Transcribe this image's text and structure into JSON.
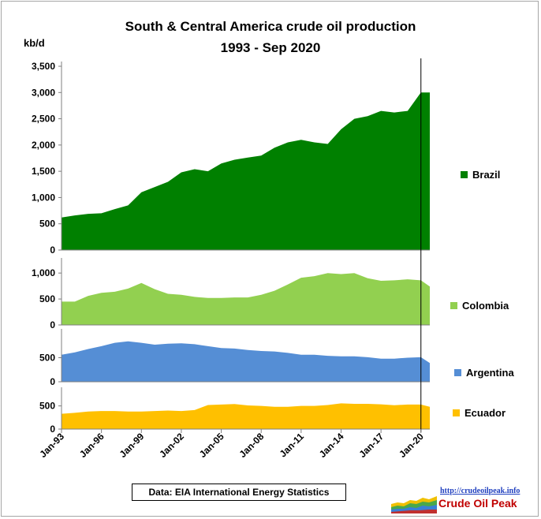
{
  "chart_data": {
    "type": "area",
    "title": "South & Central America crude oil production",
    "subtitle": "1993 - Sep 2020",
    "ylabel": "kb/d",
    "x": [
      "Jan-93",
      "Jan-96",
      "Jan-99",
      "Jan-02",
      "Jan-05",
      "Jan-08",
      "Jan-11",
      "Jan-14",
      "Jan-17",
      "Jan-20"
    ],
    "x_end": "Sep-20",
    "marker": "Jan-20",
    "source": "Data: EIA International Energy Statistics",
    "series": [
      {
        "name": "Brazil",
        "color": "#008000",
        "ylim": [
          0,
          3500
        ],
        "yticks": [
          "0",
          "500",
          "1,000",
          "1,500",
          "2,000",
          "2,500",
          "3,000",
          "3,500"
        ],
        "points": [
          [
            "Jan-93",
            620
          ],
          [
            "Jan-94",
            660
          ],
          [
            "Jan-95",
            690
          ],
          [
            "Jan-96",
            700
          ],
          [
            "Jan-97",
            780
          ],
          [
            "Jan-98",
            850
          ],
          [
            "Jan-99",
            1100
          ],
          [
            "Jan-00",
            1200
          ],
          [
            "Jan-01",
            1300
          ],
          [
            "Jan-02",
            1480
          ],
          [
            "Jan-03",
            1540
          ],
          [
            "Jan-04",
            1500
          ],
          [
            "Jan-05",
            1650
          ],
          [
            "Jan-06",
            1720
          ],
          [
            "Jan-07",
            1760
          ],
          [
            "Jan-08",
            1800
          ],
          [
            "Jan-09",
            1950
          ],
          [
            "Jan-10",
            2050
          ],
          [
            "Jan-11",
            2100
          ],
          [
            "Jan-12",
            2050
          ],
          [
            "Jan-13",
            2020
          ],
          [
            "Jan-14",
            2300
          ],
          [
            "Jan-15",
            2500
          ],
          [
            "Jan-16",
            2550
          ],
          [
            "Jan-17",
            2650
          ],
          [
            "Jan-18",
            2620
          ],
          [
            "Jan-19",
            2650
          ],
          [
            "Jan-20",
            3000
          ],
          [
            "Sep-20",
            3000
          ]
        ]
      },
      {
        "name": "Colombia",
        "color": "#92d050",
        "ylim": [
          0,
          1200
        ],
        "yticks": [
          "0",
          "500",
          "1,000"
        ],
        "points": [
          [
            "Jan-93",
            450
          ],
          [
            "Jan-94",
            450
          ],
          [
            "Jan-95",
            560
          ],
          [
            "Jan-96",
            620
          ],
          [
            "Jan-97",
            640
          ],
          [
            "Jan-98",
            700
          ],
          [
            "Jan-99",
            810
          ],
          [
            "Jan-00",
            690
          ],
          [
            "Jan-01",
            600
          ],
          [
            "Jan-02",
            580
          ],
          [
            "Jan-03",
            540
          ],
          [
            "Jan-04",
            520
          ],
          [
            "Jan-05",
            520
          ],
          [
            "Jan-06",
            530
          ],
          [
            "Jan-07",
            530
          ],
          [
            "Jan-08",
            580
          ],
          [
            "Jan-09",
            660
          ],
          [
            "Jan-10",
            780
          ],
          [
            "Jan-11",
            910
          ],
          [
            "Jan-12",
            940
          ],
          [
            "Jan-13",
            1000
          ],
          [
            "Jan-14",
            980
          ],
          [
            "Jan-15",
            1000
          ],
          [
            "Jan-16",
            900
          ],
          [
            "Jan-17",
            850
          ],
          [
            "Jan-18",
            860
          ],
          [
            "Jan-19",
            880
          ],
          [
            "Jan-20",
            860
          ],
          [
            "Sep-20",
            740
          ]
        ]
      },
      {
        "name": "Argentina",
        "color": "#558ed5",
        "ylim": [
          0,
          1000
        ],
        "yticks": [
          "0",
          "500"
        ],
        "points": [
          [
            "Jan-93",
            560
          ],
          [
            "Jan-94",
            610
          ],
          [
            "Jan-95",
            680
          ],
          [
            "Jan-96",
            740
          ],
          [
            "Jan-97",
            810
          ],
          [
            "Jan-98",
            840
          ],
          [
            "Jan-99",
            810
          ],
          [
            "Jan-00",
            770
          ],
          [
            "Jan-01",
            790
          ],
          [
            "Jan-02",
            800
          ],
          [
            "Jan-03",
            780
          ],
          [
            "Jan-04",
            740
          ],
          [
            "Jan-05",
            700
          ],
          [
            "Jan-06",
            690
          ],
          [
            "Jan-07",
            660
          ],
          [
            "Jan-08",
            640
          ],
          [
            "Jan-09",
            630
          ],
          [
            "Jan-10",
            600
          ],
          [
            "Jan-11",
            560
          ],
          [
            "Jan-12",
            560
          ],
          [
            "Jan-13",
            540
          ],
          [
            "Jan-14",
            530
          ],
          [
            "Jan-15",
            530
          ],
          [
            "Jan-16",
            510
          ],
          [
            "Jan-17",
            480
          ],
          [
            "Jan-18",
            480
          ],
          [
            "Jan-19",
            500
          ],
          [
            "Jan-20",
            510
          ],
          [
            "Sep-20",
            390
          ]
        ]
      },
      {
        "name": "Ecuador",
        "color": "#ffc000",
        "ylim": [
          0,
          800
        ],
        "yticks": [
          "0",
          "500"
        ],
        "points": [
          [
            "Jan-93",
            330
          ],
          [
            "Jan-94",
            350
          ],
          [
            "Jan-95",
            380
          ],
          [
            "Jan-96",
            390
          ],
          [
            "Jan-97",
            390
          ],
          [
            "Jan-98",
            380
          ],
          [
            "Jan-99",
            380
          ],
          [
            "Jan-00",
            390
          ],
          [
            "Jan-01",
            400
          ],
          [
            "Jan-02",
            390
          ],
          [
            "Jan-03",
            410
          ],
          [
            "Jan-04",
            520
          ],
          [
            "Jan-05",
            530
          ],
          [
            "Jan-06",
            540
          ],
          [
            "Jan-07",
            510
          ],
          [
            "Jan-08",
            500
          ],
          [
            "Jan-09",
            480
          ],
          [
            "Jan-10",
            480
          ],
          [
            "Jan-11",
            500
          ],
          [
            "Jan-12",
            500
          ],
          [
            "Jan-13",
            520
          ],
          [
            "Jan-14",
            555
          ],
          [
            "Jan-15",
            545
          ],
          [
            "Jan-16",
            545
          ],
          [
            "Jan-17",
            535
          ],
          [
            "Jan-18",
            515
          ],
          [
            "Jan-19",
            530
          ],
          [
            "Jan-20",
            530
          ],
          [
            "Sep-20",
            480
          ]
        ]
      }
    ]
  },
  "logo": {
    "url": "http://crudeoilpeak.info",
    "name": "Crude Oil Peak"
  }
}
